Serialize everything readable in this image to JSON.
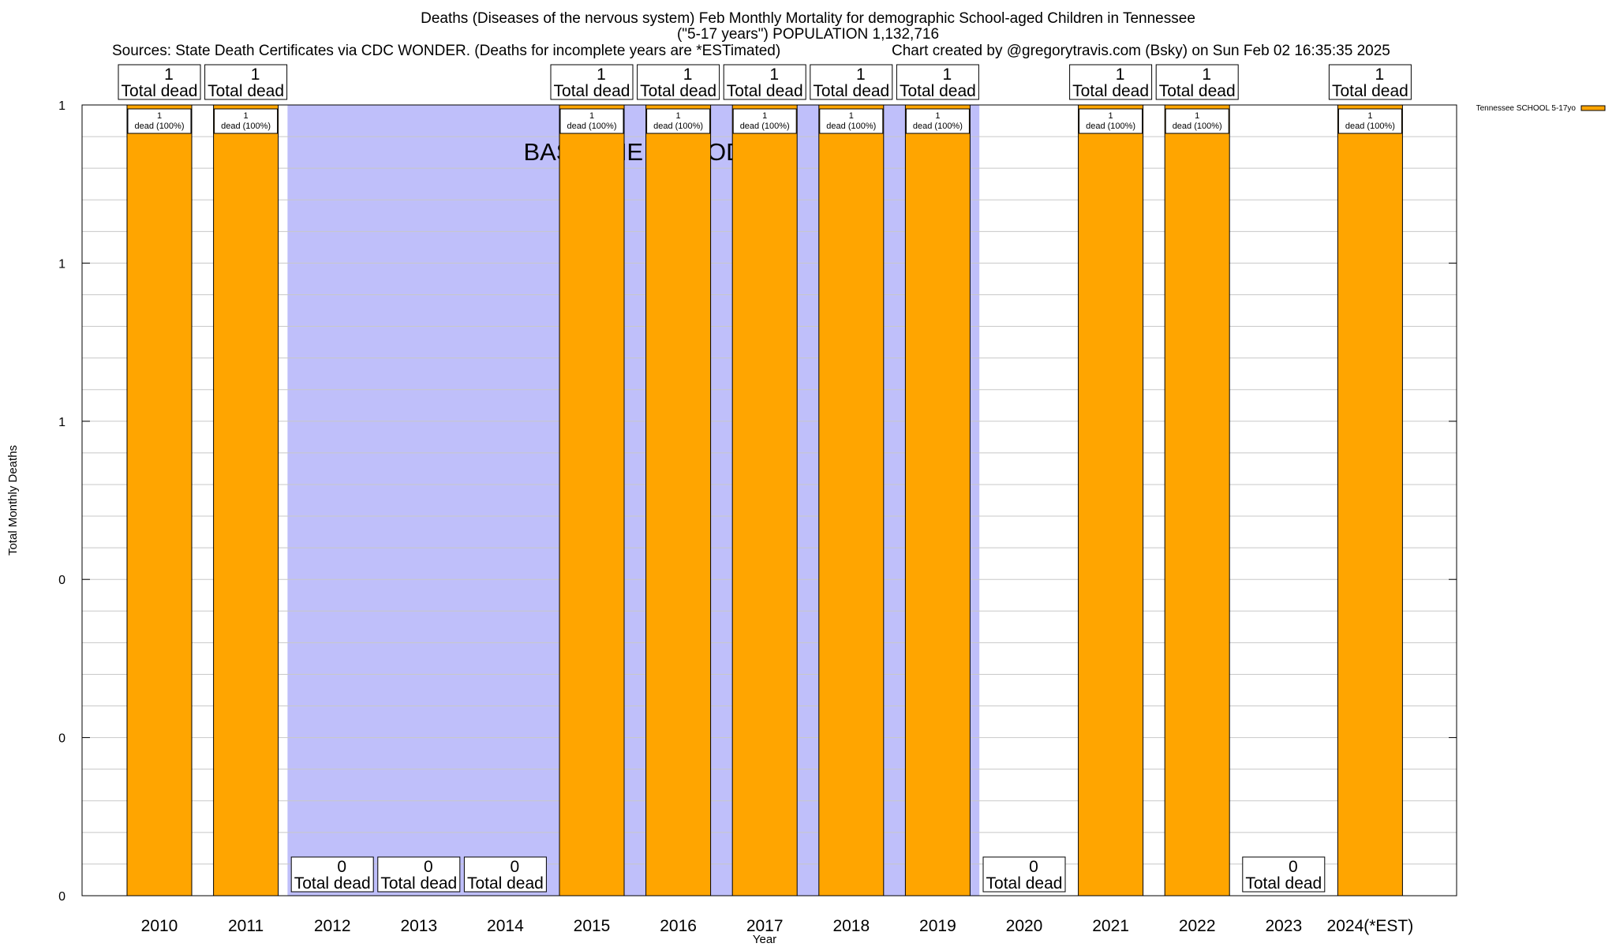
{
  "header": {
    "title": "Deaths (Diseases of the nervous system) Feb Monthly Mortality for demographic School-aged Children in Tennessee",
    "subtitle": "(\"5-17 years\") POPULATION 1,132,716",
    "sources": "Sources: State Death Certificates via CDC WONDER. (Deaths for incomplete years are *ESTimated)",
    "credit": "Chart created by @gregorytravis.com (Bsky) on Sun Feb 02 16:35:35 2025"
  },
  "colors": {
    "bar": "#FFA500",
    "baseline_shade": "#BFBFFA",
    "grid": "#c8c8c8"
  },
  "chart_data": {
    "type": "bar",
    "xlabel": "Year",
    "ylabel": "Total Monthly Deaths",
    "ylim": [
      0,
      1
    ],
    "y_tick_labels": [
      "0",
      "0",
      "0",
      "1",
      "1",
      "1"
    ],
    "y_tick_values": [
      0,
      0.2,
      0.4,
      0.6,
      0.8,
      1.0
    ],
    "categories": [
      "2010",
      "2011",
      "2012",
      "2013",
      "2014",
      "2015",
      "2016",
      "2017",
      "2018",
      "2019",
      "2020",
      "2021",
      "2022",
      "2023",
      "2024(*EST)"
    ],
    "series": [
      {
        "name": "Tennessee SCHOOL 5-17yo",
        "values": [
          1,
          1,
          0,
          0,
          0,
          1,
          1,
          1,
          1,
          1,
          0,
          1,
          1,
          0,
          1
        ]
      }
    ],
    "total_label_suffix": "Total dead",
    "inner_labels": [
      "1",
      "dead (100%)"
    ],
    "baseline_period": {
      "label": "BASELINE PERIOD",
      "from": "2012",
      "to": "2019"
    },
    "legend_position": "top-right",
    "grid": true
  }
}
